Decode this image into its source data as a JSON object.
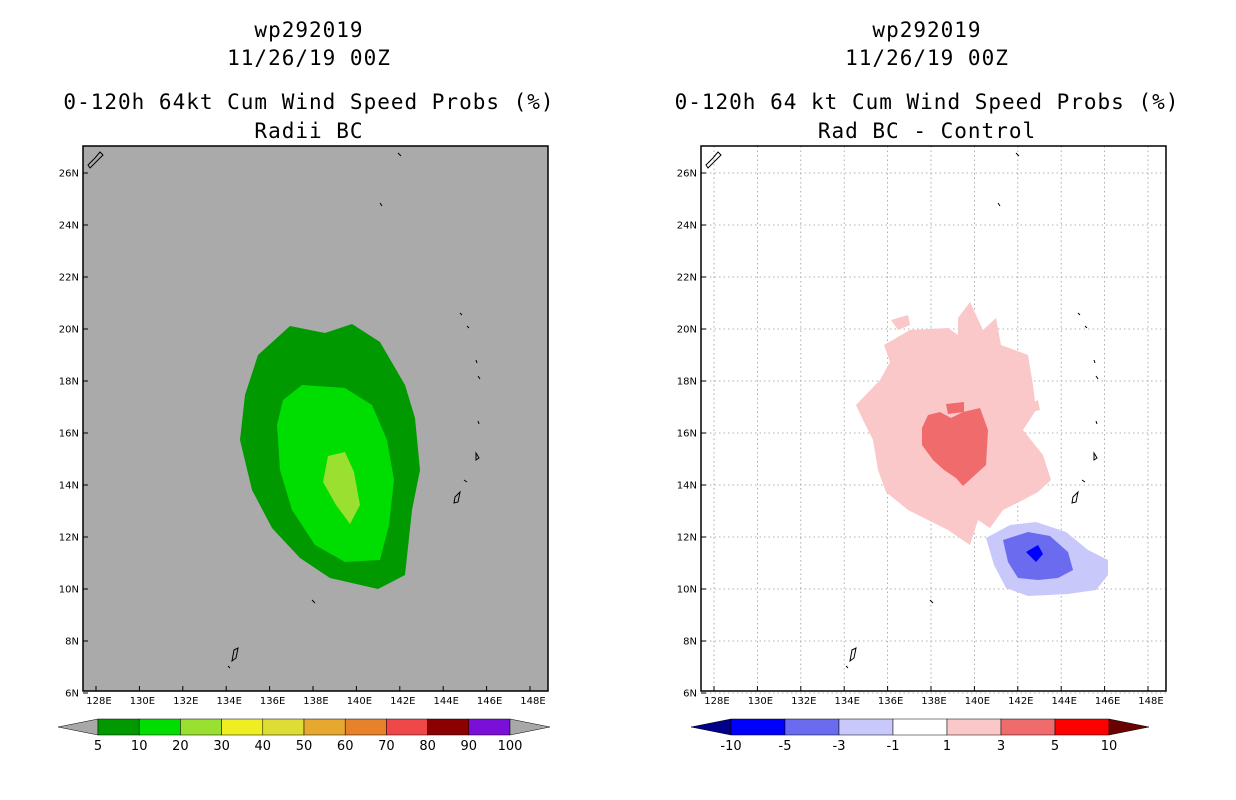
{
  "left": {
    "title_line1": "wp292019",
    "title_line2": "11/26/19 00Z",
    "title_line3": "0-120h 64kt Cum Wind Speed Probs (%)",
    "title_line4": "Radii BC",
    "lat_labels": [
      "26N",
      "24N",
      "22N",
      "20N",
      "18N",
      "16N",
      "14N",
      "12N",
      "10N",
      "8N",
      "6N"
    ],
    "lon_labels": [
      "128E",
      "130E",
      "132E",
      "134E",
      "136E",
      "138E",
      "140E",
      "142E",
      "144E",
      "146E",
      "148E"
    ],
    "colorbar_labels": [
      "5",
      "10",
      "20",
      "30",
      "40",
      "50",
      "60",
      "70",
      "80",
      "90",
      "100"
    ],
    "colorbar_colors": [
      "#009900",
      "#00dd00",
      "#99e030",
      "#eeee22",
      "#dddd33",
      "#e6a82f",
      "#e8822a",
      "#f04848",
      "#8b0000",
      "#7a10d8"
    ]
  },
  "right": {
    "title_line1": "wp292019",
    "title_line2": "11/26/19 00Z",
    "title_line3": "0-120h 64 kt Cum Wind Speed Probs (%)",
    "title_line4": "Rad BC - Control",
    "lat_labels": [
      "26N",
      "24N",
      "22N",
      "20N",
      "18N",
      "16N",
      "14N",
      "12N",
      "10N",
      "8N",
      "6N"
    ],
    "lon_labels": [
      "128E",
      "130E",
      "132E",
      "134E",
      "136E",
      "138E",
      "140E",
      "142E",
      "144E",
      "146E",
      "148E"
    ],
    "colorbar_labels": [
      "-10",
      "-5",
      "-3",
      "-1",
      "1",
      "3",
      "5",
      "10"
    ],
    "colorbar_colors": [
      "#0000ff",
      "#6b6bf0",
      "#c8c8fa",
      "#ffffff",
      "#fac8c8",
      "#f06b6b",
      "#ff0000"
    ]
  },
  "colors": {
    "background_gray": "#aaaaaa",
    "cb_low_arrow_left": "#a8a8a8",
    "cb_high_arrow_left": "#a8a8a8",
    "cb_low_arrow_right": "#00008b",
    "cb_high_arrow_right": "#6a0000"
  }
}
